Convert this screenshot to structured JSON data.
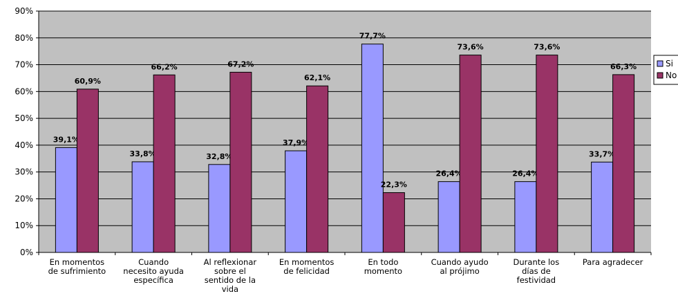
{
  "chart_data": {
    "type": "bar",
    "title": "",
    "xlabel": "",
    "ylabel": "",
    "ylim": [
      0,
      90
    ],
    "y_ticks": [
      "0%",
      "10%",
      "20%",
      "30%",
      "40%",
      "50%",
      "60%",
      "70%",
      "80%",
      "90%"
    ],
    "grid": true,
    "legend_position": "right",
    "categories": [
      [
        "En momentos",
        "de sufrimiento"
      ],
      [
        "Cuando",
        "necesito ayuda",
        "específica"
      ],
      [
        "Al reflexionar",
        "sobre el",
        "sentido de la",
        "vida"
      ],
      [
        "En momentos",
        "de felicidad"
      ],
      [
        "En todo",
        "momento"
      ],
      [
        "Cuando ayudo",
        "al prójimo"
      ],
      [
        "Durante los",
        "días de",
        "festividad"
      ],
      [
        "Para agradecer"
      ]
    ],
    "series": [
      {
        "name": "Si",
        "color": "#9999ff",
        "values": [
          39.1,
          33.8,
          32.8,
          37.9,
          77.7,
          26.4,
          26.4,
          33.7
        ],
        "labels": [
          "39,1%",
          "33,8%",
          "32,8%",
          "37,9%",
          "77,7%",
          "26,4%",
          "26,4%",
          "33,7%"
        ]
      },
      {
        "name": "No",
        "color": "#993366",
        "values": [
          60.9,
          66.2,
          67.2,
          62.1,
          22.3,
          73.6,
          73.6,
          66.3
        ],
        "labels": [
          "60,9%",
          "66,2%",
          "67,2%",
          "62,1%",
          "22,3%",
          "73,6%",
          "73,6%",
          "66,3%"
        ]
      }
    ],
    "plot_background": "#c0c0c0"
  }
}
